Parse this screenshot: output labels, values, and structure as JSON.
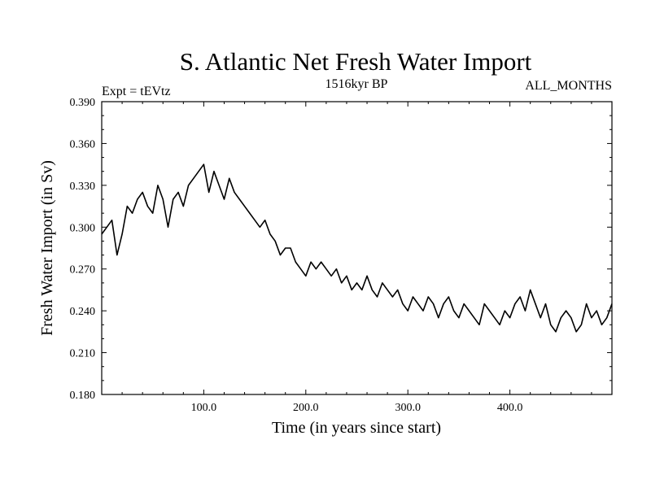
{
  "chart_data": {
    "type": "line",
    "title": "S. Atlantic Net Fresh Water Import",
    "subtitle_left": "Expt = tEVtz",
    "subtitle_center": "1516kyr BP",
    "subtitle_right": "ALL_MONTHS",
    "xlabel": "Time (in years since start)",
    "ylabel": "Fresh Water Import (in Sv)",
    "xlim": [
      0,
      500
    ],
    "ylim": [
      0.18,
      0.39
    ],
    "x_ticks": [
      100,
      200,
      300,
      400
    ],
    "x_tick_labels": [
      "100.0",
      "200.0",
      "300.0",
      "400.0"
    ],
    "y_ticks": [
      0.18,
      0.21,
      0.24,
      0.27,
      0.3,
      0.33,
      0.36,
      0.39
    ],
    "y_tick_labels": [
      "0.180",
      "0.210",
      "0.240",
      "0.270",
      "0.300",
      "0.330",
      "0.360",
      "0.390"
    ],
    "line_color": "#000000",
    "series": [
      {
        "name": "S. Atlantic Net Fresh Water Import",
        "x": [
          0,
          5,
          10,
          15,
          20,
          25,
          30,
          35,
          40,
          45,
          50,
          55,
          60,
          65,
          70,
          75,
          80,
          85,
          90,
          95,
          100,
          105,
          110,
          115,
          120,
          125,
          130,
          135,
          140,
          145,
          150,
          155,
          160,
          165,
          170,
          175,
          180,
          185,
          190,
          195,
          200,
          205,
          210,
          215,
          220,
          225,
          230,
          235,
          240,
          245,
          250,
          255,
          260,
          265,
          270,
          275,
          280,
          285,
          290,
          295,
          300,
          305,
          310,
          315,
          320,
          325,
          330,
          335,
          340,
          345,
          350,
          355,
          360,
          365,
          370,
          375,
          380,
          385,
          390,
          395,
          400,
          405,
          410,
          415,
          420,
          425,
          430,
          435,
          440,
          445,
          450,
          455,
          460,
          465,
          470,
          475,
          480,
          485,
          490,
          495,
          500
        ],
        "values": [
          0.295,
          0.3,
          0.305,
          0.28,
          0.295,
          0.315,
          0.31,
          0.32,
          0.325,
          0.315,
          0.31,
          0.33,
          0.32,
          0.3,
          0.32,
          0.325,
          0.315,
          0.33,
          0.335,
          0.34,
          0.345,
          0.325,
          0.34,
          0.33,
          0.32,
          0.335,
          0.325,
          0.32,
          0.315,
          0.31,
          0.305,
          0.3,
          0.305,
          0.295,
          0.29,
          0.28,
          0.285,
          0.285,
          0.275,
          0.27,
          0.265,
          0.275,
          0.27,
          0.275,
          0.27,
          0.265,
          0.27,
          0.26,
          0.265,
          0.255,
          0.26,
          0.255,
          0.265,
          0.255,
          0.25,
          0.26,
          0.255,
          0.25,
          0.255,
          0.245,
          0.24,
          0.25,
          0.245,
          0.24,
          0.25,
          0.245,
          0.235,
          0.245,
          0.25,
          0.24,
          0.235,
          0.245,
          0.24,
          0.235,
          0.23,
          0.245,
          0.24,
          0.235,
          0.23,
          0.24,
          0.235,
          0.245,
          0.25,
          0.24,
          0.255,
          0.245,
          0.235,
          0.245,
          0.23,
          0.225,
          0.235,
          0.24,
          0.235,
          0.225,
          0.23,
          0.245,
          0.235,
          0.24,
          0.23,
          0.235,
          0.245
        ]
      }
    ]
  }
}
